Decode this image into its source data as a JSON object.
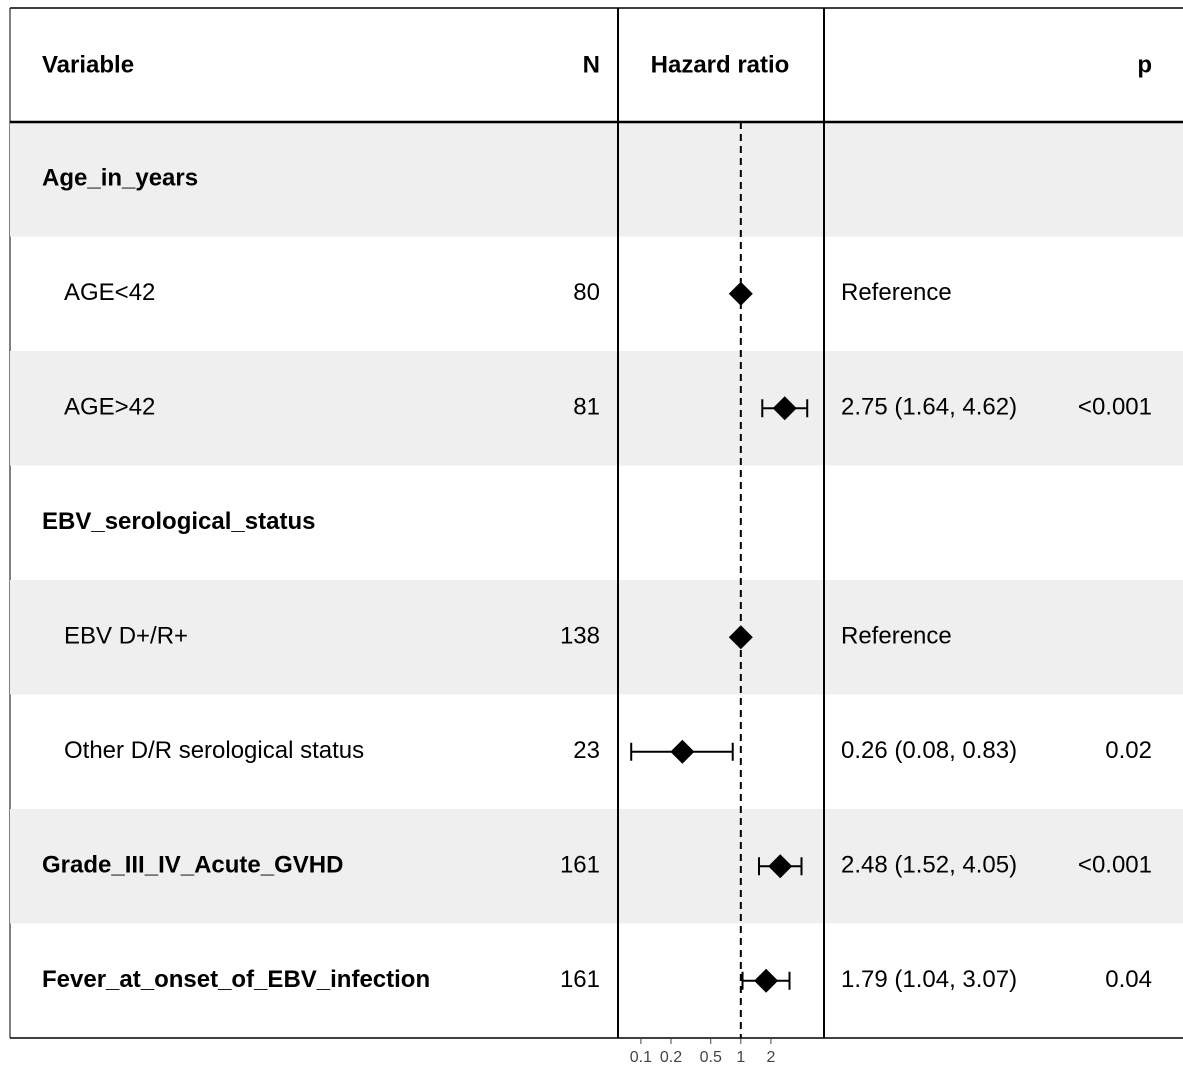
{
  "chart_data": {
    "type": "forest",
    "headers": {
      "variable": "Variable",
      "n": "N",
      "estimate": "Hazard ratio",
      "p": "p"
    },
    "categories": [
      "Age_in_years",
      "AGE<42",
      "AGE>42",
      "EBV_serological_status",
      "EBV D+/R+",
      "Other D/R serological status",
      "Grade_III_IV_Acute_GVHD",
      "Fever_at_onset_of_EBV_infection"
    ],
    "bold": [
      true,
      false,
      false,
      true,
      false,
      false,
      true,
      true
    ],
    "n": [
      null,
      80,
      81,
      null,
      138,
      23,
      161,
      161
    ],
    "values": [
      null,
      1,
      2.75,
      null,
      1,
      0.26,
      2.48,
      1.79
    ],
    "lower": [
      null,
      null,
      1.64,
      null,
      null,
      0.08,
      1.52,
      1.04
    ],
    "upper": [
      null,
      null,
      4.62,
      null,
      null,
      0.83,
      4.05,
      3.07
    ],
    "value_labels": [
      null,
      "Reference",
      "2.75 (1.64, 4.62)",
      null,
      "Reference",
      "0.26 (0.08, 0.83)",
      "2.48 (1.52, 4.05)",
      "1.79 (1.04, 3.07)"
    ],
    "p": [
      null,
      null,
      "<0.001",
      null,
      null,
      0.02,
      "<0.001",
      0.04
    ],
    "xscale": "log",
    "xlim": [
      0.059,
      6.8
    ],
    "xticks": [
      0.1,
      0.2,
      0.5,
      1,
      2
    ],
    "reference_line": 1,
    "color": "#000000",
    "stripe_color": "#efefef"
  }
}
